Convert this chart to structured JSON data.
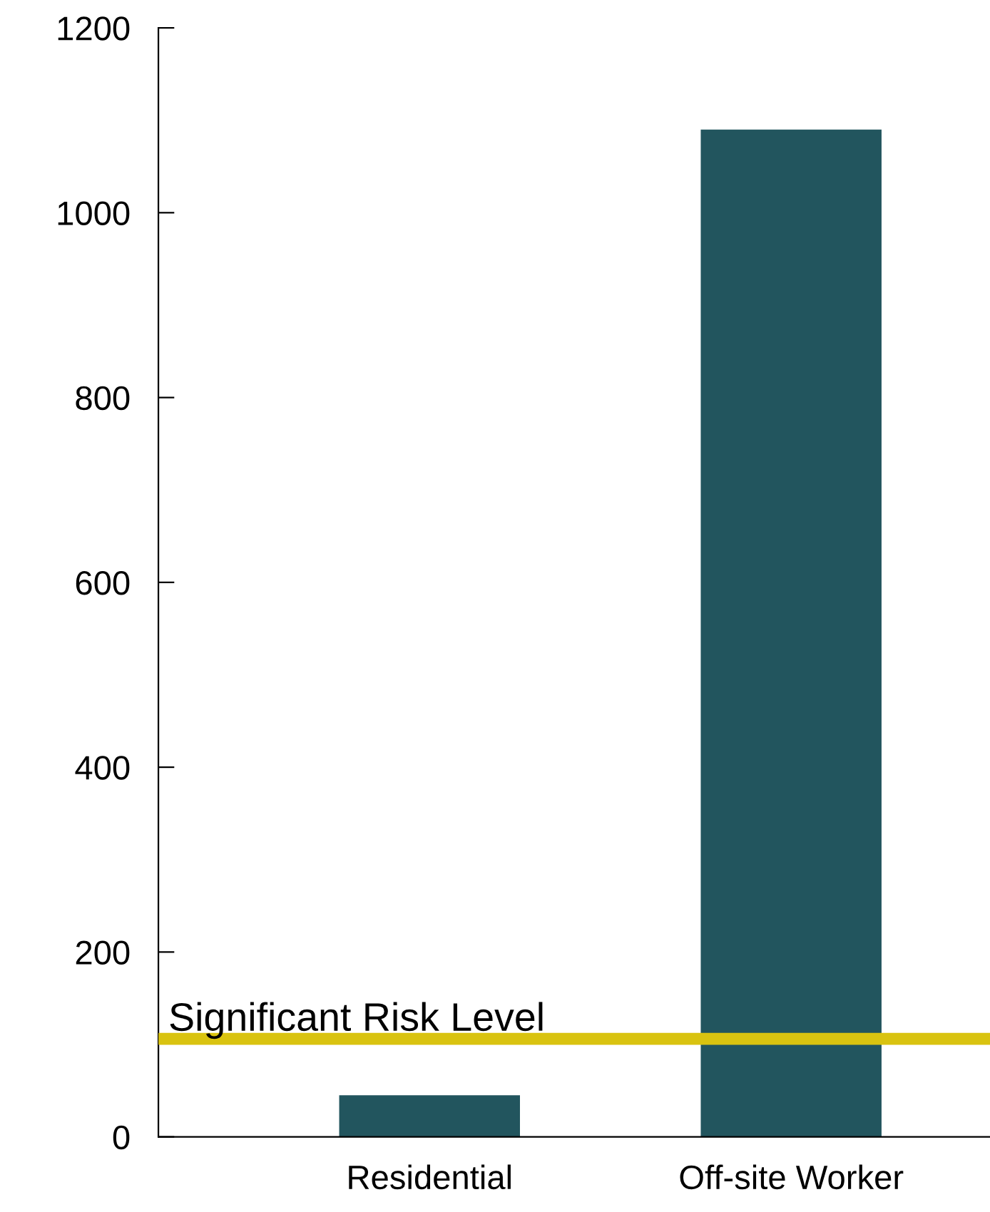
{
  "chart_data": {
    "type": "bar",
    "categories": [
      "Residential",
      "Off-site Worker"
    ],
    "values": [
      45,
      1090
    ],
    "color": "#22555e",
    "ylim": [
      0,
      1200
    ],
    "yticks": [
      0,
      200,
      400,
      600,
      800,
      1000,
      1200
    ],
    "grid": false,
    "ref_lines": [
      {
        "axis": "y",
        "value": 106,
        "label": "Significant Risk Level",
        "color": "#d9c310"
      }
    ]
  }
}
